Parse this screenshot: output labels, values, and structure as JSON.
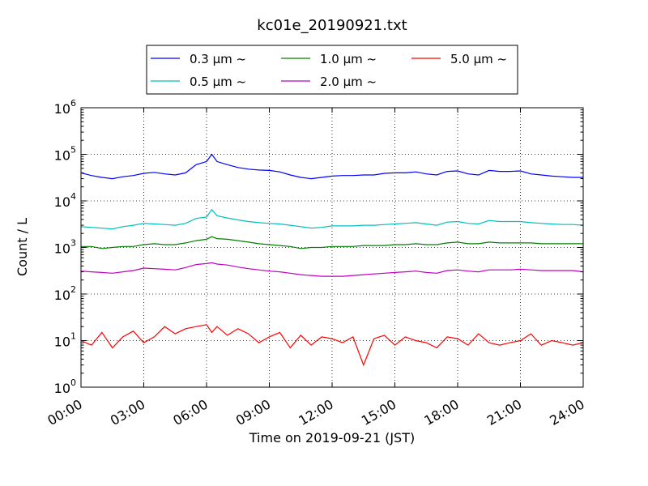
{
  "chart_data": {
    "type": "line",
    "title": "kc01e_20190921.txt",
    "xlabel": "Time on 2019-09-21 (JST)",
    "ylabel": "Count / L",
    "yscale": "log",
    "ylim": [
      1,
      1000000
    ],
    "xlim_hours": [
      0,
      24
    ],
    "grid": true,
    "legend_placement": "top-center",
    "x_ticks": [
      "00:00",
      "03:00",
      "06:00",
      "09:00",
      "12:00",
      "15:00",
      "18:00",
      "21:00",
      "24:00"
    ],
    "y_ticks": [
      {
        "value": 1,
        "base": "10",
        "exp": "0"
      },
      {
        "value": 10,
        "base": "10",
        "exp": "1"
      },
      {
        "value": 100,
        "base": "10",
        "exp": "2"
      },
      {
        "value": 1000,
        "base": "10",
        "exp": "3"
      },
      {
        "value": 10000,
        "base": "10",
        "exp": "4"
      },
      {
        "value": 100000,
        "base": "10",
        "exp": "5"
      },
      {
        "value": 1000000,
        "base": "10",
        "exp": "6"
      }
    ],
    "x_hours": [
      0,
      0.5,
      1,
      1.5,
      2,
      2.5,
      3,
      3.5,
      4,
      4.5,
      5,
      5.5,
      6,
      6.25,
      6.5,
      7,
      7.5,
      8,
      8.5,
      9,
      9.5,
      10,
      10.5,
      11,
      11.5,
      12,
      12.5,
      13,
      13.5,
      14,
      14.5,
      15,
      15.5,
      16,
      16.5,
      17,
      17.5,
      18,
      18.5,
      19,
      19.5,
      20,
      20.5,
      21,
      21.5,
      22,
      22.5,
      23,
      23.5,
      24
    ],
    "series": [
      {
        "name": "0.3 μm ~",
        "color": "#0000ff",
        "values": [
          40000,
          35000,
          32000,
          30000,
          33000,
          35000,
          39000,
          41000,
          38000,
          36000,
          40000,
          60000,
          70000,
          100000,
          70000,
          60000,
          52000,
          48000,
          46000,
          45000,
          42000,
          36000,
          32000,
          30000,
          32000,
          34000,
          35000,
          35000,
          36000,
          36000,
          39000,
          40000,
          40000,
          42000,
          38000,
          36000,
          43000,
          44000,
          38000,
          36000,
          45000,
          43000,
          43000,
          44000,
          38000,
          36000,
          34000,
          33000,
          32000,
          32000
        ]
      },
      {
        "name": "0.5 μm ~",
        "color": "#00bfbf",
        "values": [
          2800,
          2700,
          2600,
          2500,
          2800,
          3000,
          3300,
          3200,
          3100,
          3000,
          3300,
          4200,
          4500,
          6500,
          4800,
          4300,
          3900,
          3600,
          3400,
          3300,
          3200,
          3000,
          2800,
          2600,
          2700,
          2900,
          2900,
          2900,
          3000,
          3000,
          3100,
          3200,
          3300,
          3400,
          3200,
          3000,
          3500,
          3600,
          3300,
          3200,
          3800,
          3600,
          3600,
          3600,
          3400,
          3300,
          3200,
          3100,
          3100,
          3000
        ]
      },
      {
        "name": "1.0 μm ~",
        "color": "#008000",
        "values": [
          1050,
          1050,
          950,
          1000,
          1050,
          1050,
          1150,
          1200,
          1150,
          1150,
          1250,
          1400,
          1500,
          1700,
          1550,
          1500,
          1400,
          1300,
          1200,
          1150,
          1100,
          1050,
          950,
          1000,
          1000,
          1050,
          1050,
          1050,
          1100,
          1100,
          1100,
          1150,
          1150,
          1200,
          1150,
          1150,
          1250,
          1300,
          1200,
          1200,
          1300,
          1250,
          1250,
          1250,
          1250,
          1200,
          1200,
          1200,
          1200,
          1200
        ]
      },
      {
        "name": "2.0 μm ~",
        "color": "#bf00bf",
        "values": [
          310,
          300,
          290,
          280,
          300,
          320,
          360,
          350,
          340,
          330,
          370,
          430,
          450,
          470,
          440,
          420,
          380,
          350,
          330,
          310,
          300,
          280,
          260,
          250,
          240,
          240,
          240,
          250,
          260,
          270,
          280,
          290,
          300,
          310,
          290,
          280,
          320,
          330,
          310,
          300,
          330,
          330,
          330,
          340,
          330,
          320,
          320,
          320,
          320,
          300
        ]
      },
      {
        "name": "5.0 μm ~",
        "color": "#ff0000",
        "values": [
          10,
          8,
          15,
          7,
          12,
          16,
          9,
          12,
          20,
          14,
          18,
          20,
          22,
          15,
          20,
          13,
          18,
          14,
          9,
          12,
          15,
          7,
          13,
          8,
          12,
          11,
          9,
          12,
          3,
          11,
          13,
          8,
          12,
          10,
          9,
          7,
          12,
          11,
          8,
          14,
          9,
          8,
          9,
          10,
          14,
          8,
          10,
          9,
          8,
          9
        ]
      }
    ]
  }
}
